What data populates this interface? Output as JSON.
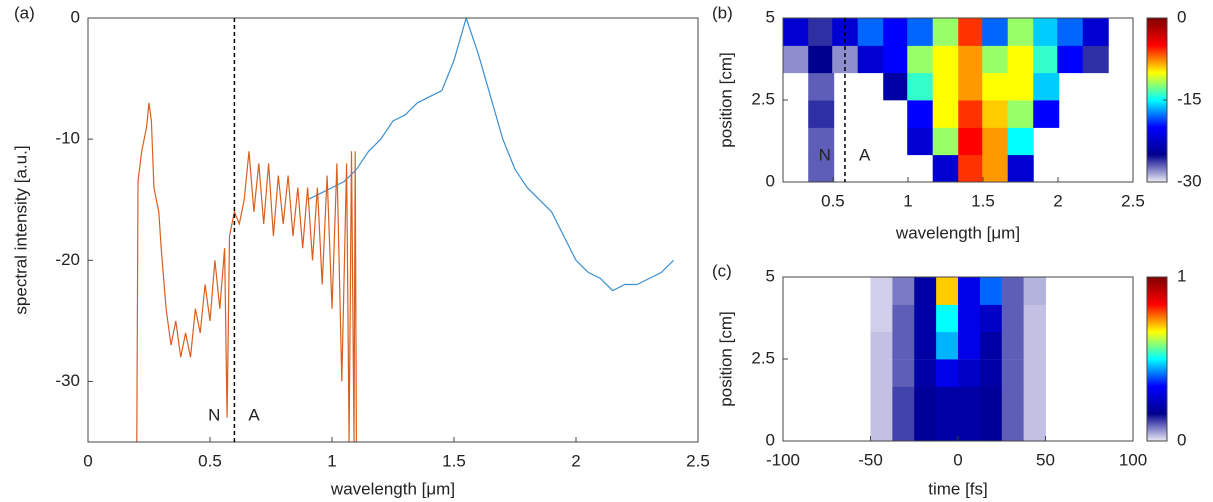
{
  "chart_data": [
    {
      "type": "line",
      "panel": "(a)",
      "xlabel": "wavelength [μm]",
      "ylabel": "spectral intensity [a.u.]",
      "xlim": [
        0,
        2.5
      ],
      "ylim": [
        -35,
        0
      ],
      "xticks": [
        0,
        0.5,
        1,
        1.5,
        2,
        2.5
      ],
      "yticks": [
        0,
        -10,
        -20,
        -30
      ],
      "vline": 0.6,
      "annotations": [
        "N",
        "A"
      ],
      "series": [
        {
          "color": "#3a8fd0",
          "x": [
            0.9,
            0.95,
            1.0,
            1.05,
            1.1,
            1.15,
            1.2,
            1.25,
            1.3,
            1.35,
            1.4,
            1.45,
            1.5,
            1.55,
            1.6,
            1.65,
            1.7,
            1.75,
            1.8,
            1.85,
            1.9,
            1.95,
            2.0,
            2.05,
            2.1,
            2.15,
            2.2,
            2.25,
            2.3,
            2.35,
            2.4
          ],
          "values": [
            -15,
            -14.5,
            -14,
            -13.5,
            -12.5,
            -11,
            -10,
            -8.5,
            -8,
            -7,
            -6.5,
            -6,
            -3.5,
            0,
            -3,
            -6.5,
            -10,
            -12.5,
            -14,
            -15,
            -16,
            -18,
            -20,
            -21,
            -21.5,
            -22.5,
            -22,
            -22,
            -21.5,
            -21,
            -20
          ]
        },
        {
          "color": "#d95f1f",
          "x": [
            0.2,
            0.205,
            0.22,
            0.24,
            0.25,
            0.26,
            0.27,
            0.28,
            0.29,
            0.3,
            0.32,
            0.34,
            0.36,
            0.38,
            0.4,
            0.42,
            0.44,
            0.46,
            0.48,
            0.5,
            0.52,
            0.54,
            0.56,
            0.57,
            0.58,
            0.6,
            0.62,
            0.64,
            0.66,
            0.68,
            0.7,
            0.72,
            0.74,
            0.76,
            0.78,
            0.8,
            0.82,
            0.84,
            0.86,
            0.88,
            0.9,
            0.92,
            0.94,
            0.96,
            0.98,
            1.0,
            1.02,
            1.04,
            1.06,
            1.07,
            1.08,
            1.09,
            1.095,
            1.1
          ],
          "values": [
            -35,
            -13.5,
            -11,
            -9,
            -7,
            -8.5,
            -14,
            -15,
            -16,
            -19,
            -24,
            -27,
            -25,
            -28,
            -26,
            -28,
            -24,
            -26,
            -22,
            -25,
            -20,
            -24,
            -19,
            -33,
            -18,
            -16,
            -17,
            -15,
            -11,
            -16,
            -12,
            -17,
            -12,
            -18,
            -13,
            -17,
            -13,
            -18,
            -14,
            -19,
            -14,
            -20,
            -14,
            -22,
            -13,
            -24,
            -12,
            -30,
            -12,
            -35,
            -11,
            -35,
            -11,
            -35
          ]
        }
      ]
    },
    {
      "type": "heatmap",
      "panel": "(b)",
      "xlabel": "wavelength [μm]",
      "ylabel": "position [cm]",
      "xlim": [
        0.167,
        2.5
      ],
      "ylim": [
        0,
        5
      ],
      "xticks": [
        0.5,
        1,
        1.5,
        2,
        2.5
      ],
      "yticks": [
        0,
        2.5,
        5
      ],
      "clim": [
        -30,
        0
      ],
      "cticks": [
        0,
        -15,
        -30
      ],
      "vline": 0.58,
      "annotations": [
        "N",
        "A"
      ],
      "colormap": [
        "#ecebf6",
        "#00008f",
        "#0000ff",
        "#00ffff",
        "#ffff00",
        "#ff0000",
        "#800000"
      ],
      "x": [
        0.25,
        0.42,
        0.58,
        0.75,
        0.92,
        1.08,
        1.25,
        1.42,
        1.58,
        1.75,
        1.92,
        2.08,
        2.25,
        2.42
      ],
      "y": [
        0.42,
        1.25,
        2.08,
        2.92,
        3.75,
        4.58
      ],
      "z": [
        [
          null,
          -27,
          null,
          null,
          null,
          null,
          -22,
          -6,
          -8,
          -22,
          null,
          null,
          null,
          null
        ],
        [
          null,
          -27,
          null,
          null,
          null,
          -22,
          -12,
          -5,
          -8,
          -15,
          null,
          null,
          null,
          null
        ],
        [
          null,
          -26,
          null,
          null,
          null,
          -20,
          -10,
          -6,
          -9,
          -12,
          -20,
          null,
          null,
          null
        ],
        [
          null,
          -27,
          null,
          null,
          -24,
          -14,
          -10,
          -8,
          -10,
          -10,
          -16,
          null,
          null,
          null
        ],
        [
          -28,
          -25,
          -28,
          -22,
          -20,
          -12,
          -10,
          -8,
          -12,
          -10,
          -14,
          -20,
          -26,
          null
        ],
        [
          -22,
          -26,
          -22,
          -18,
          -20,
          -18,
          -12,
          -6,
          -18,
          -12,
          -16,
          -18,
          -22,
          null
        ]
      ]
    },
    {
      "type": "heatmap",
      "panel": "(c)",
      "xlabel": "time [fs]",
      "ylabel": "position [cm]",
      "xlim": [
        -100,
        100
      ],
      "ylim": [
        0,
        5
      ],
      "xticks": [
        -100,
        -50,
        0,
        50,
        100
      ],
      "yticks": [
        0,
        2.5,
        5
      ],
      "clim": [
        0,
        1
      ],
      "cticks": [
        1,
        0
      ],
      "colormap": [
        "#ecebf6",
        "#00008f",
        "#0000ff",
        "#00ffff",
        "#ffff00",
        "#ff0000",
        "#800000"
      ],
      "x": [
        -93.75,
        -81.25,
        -68.75,
        -56.25,
        -43.75,
        -31.25,
        -18.75,
        -6.25,
        6.25,
        18.75,
        31.25,
        43.75,
        56.25,
        68.75,
        81.25,
        93.75
      ],
      "y": [
        0.42,
        1.25,
        2.08,
        2.92,
        3.75,
        4.58
      ],
      "z": [
        [
          null,
          null,
          null,
          null,
          0.03,
          0.12,
          0.18,
          0.2,
          0.2,
          0.18,
          0.1,
          0.03,
          null,
          null,
          null,
          null
        ],
        [
          null,
          null,
          null,
          null,
          0.03,
          0.12,
          0.18,
          0.2,
          0.2,
          0.18,
          0.1,
          0.03,
          null,
          null,
          null,
          null
        ],
        [
          null,
          null,
          null,
          null,
          0.03,
          0.1,
          0.2,
          0.3,
          0.25,
          0.2,
          0.1,
          0.03,
          null,
          null,
          null,
          null
        ],
        [
          null,
          null,
          null,
          null,
          0.03,
          0.1,
          0.2,
          0.45,
          0.3,
          0.2,
          0.1,
          0.03,
          null,
          null,
          null,
          null
        ],
        [
          null,
          null,
          null,
          null,
          0.02,
          0.1,
          0.2,
          0.5,
          0.3,
          0.25,
          0.1,
          0.03,
          null,
          null,
          null,
          null
        ],
        [
          null,
          null,
          null,
          null,
          0.02,
          0.08,
          0.2,
          0.7,
          0.3,
          0.4,
          0.1,
          0.04,
          null,
          null,
          null,
          null
        ]
      ]
    }
  ]
}
